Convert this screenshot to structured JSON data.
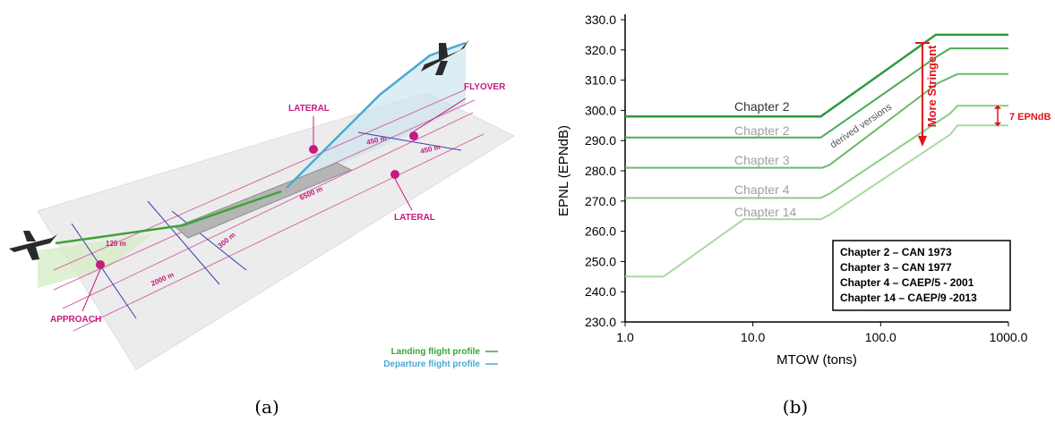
{
  "left": {
    "labels": {
      "lateral_top": "LATERAL",
      "flyover": "FLYOVER",
      "lateral_right": "LATERAL",
      "approach": "APPROACH",
      "dist_450a": "450 m",
      "dist_450b": "450 m",
      "dist_6500": "6500 m",
      "dist_2000": "2000 m",
      "dist_120": "120 m",
      "dist_300": "300 m"
    },
    "legend": {
      "landing": "Landing flight profile",
      "departure": "Departure flight profile",
      "landing_color": "#3aa534",
      "departure_color": "#4aa9d6"
    },
    "caption": "(a)"
  },
  "right": {
    "caption": "(b)",
    "chart_data": {
      "type": "line",
      "xlabel": "MTOW (tons)",
      "ylabel": "EPNL (EPNdB)",
      "xscale": "log",
      "xlim": [
        1,
        1000
      ],
      "ylim": [
        230,
        330
      ],
      "xticks": [
        "1.0",
        "10.0",
        "100.0",
        "1000.0"
      ],
      "yticks": [
        "230.0",
        "240.0",
        "250.0",
        "260.0",
        "270.0",
        "280.0",
        "290.0",
        "300.0",
        "310.0",
        "320.0",
        "330.0"
      ],
      "series": [
        {
          "name": "Chapter 2",
          "color": "#2e9a3e",
          "points": [
            [
              1,
              298
            ],
            [
              34,
              298
            ],
            [
              270,
              325
            ],
            [
              1000,
              325
            ]
          ]
        },
        {
          "name": "Chapter 2",
          "color": "#4aab55",
          "points": [
            [
              1,
              291
            ],
            [
              34,
              291
            ],
            [
              280,
              318
            ],
            [
              350,
              320.5
            ],
            [
              1000,
              320.5
            ]
          ]
        },
        {
          "name": "Chapter 3",
          "color": "#6cba6a",
          "points": [
            [
              1,
              281
            ],
            [
              35,
              281
            ],
            [
              40,
              282
            ],
            [
              280,
              309
            ],
            [
              400,
              312
            ],
            [
              1000,
              312
            ]
          ]
        },
        {
          "name": "Chapter 4",
          "color": "#8ccb86",
          "points": [
            [
              1,
              271
            ],
            [
              34,
              271
            ],
            [
              40,
              272.5
            ],
            [
              350,
              299
            ],
            [
              400,
              301.5
            ],
            [
              1000,
              301.5
            ]
          ]
        },
        {
          "name": "Chapter 14",
          "color": "#a8d9a0",
          "points": [
            [
              1,
              245
            ],
            [
              2,
              245
            ],
            [
              8.5,
              264
            ],
            [
              34,
              264
            ],
            [
              40,
              265.5
            ],
            [
              350,
              292
            ],
            [
              400,
              295
            ],
            [
              1000,
              295
            ]
          ]
        }
      ],
      "annotations": {
        "derived": "derived versions",
        "stringent": "More Stringent",
        "gap": "7 EPNdB"
      },
      "legend_box": [
        "Chapter 2 – CAN 1973",
        "Chapter 3 – CAN 1977",
        "Chapter 4 – CAEP/5 - 2001",
        "Chapter 14 – CAEP/9 -2013"
      ]
    }
  }
}
